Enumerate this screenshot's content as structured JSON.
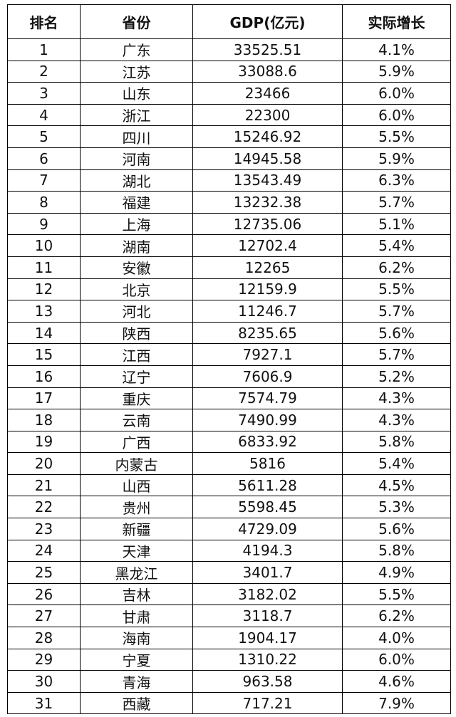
{
  "table": {
    "header": [
      "排名",
      "省份",
      "GDP(亿元)",
      "实际增长"
    ],
    "rows": [
      [
        1,
        "广东",
        33525.51,
        "4.1%"
      ],
      [
        2,
        "江苏",
        33088.6,
        "5.9%"
      ],
      [
        3,
        "山东",
        23466,
        "6.0%"
      ],
      [
        4,
        "浙江",
        22300,
        "6.0%"
      ],
      [
        5,
        "四川",
        15246.92,
        "5.5%"
      ],
      [
        6,
        "河南",
        14945.58,
        "5.9%"
      ],
      [
        7,
        "湖北",
        13543.49,
        "6.3%"
      ],
      [
        8,
        "福建",
        13232.38,
        "5.7%"
      ],
      [
        9,
        "上海",
        12735.06,
        "5.1%"
      ],
      [
        10,
        "湖南",
        12702.4,
        "5.4%"
      ],
      [
        11,
        "安徽",
        12265,
        "6.2%"
      ],
      [
        12,
        "北京",
        12159.9,
        "5.5%"
      ],
      [
        13,
        "河北",
        11246.7,
        "5.7%"
      ],
      [
        14,
        "陕西",
        8235.65,
        "5.6%"
      ],
      [
        15,
        "江西",
        7927.1,
        "5.7%"
      ],
      [
        16,
        "辽宁",
        7606.9,
        "5.2%"
      ],
      [
        17,
        "重庆",
        7574.79,
        "4.3%"
      ],
      [
        18,
        "云南",
        7490.99,
        "4.3%"
      ],
      [
        19,
        "广西",
        6833.92,
        "5.8%"
      ],
      [
        20,
        "内蒙古",
        5816,
        "5.4%"
      ],
      [
        21,
        "山西",
        5611.28,
        "4.5%"
      ],
      [
        22,
        "贵州",
        5598.45,
        "5.3%"
      ],
      [
        23,
        "新疆",
        4729.09,
        "5.6%"
      ],
      [
        24,
        "天津",
        4194.3,
        "5.8%"
      ],
      [
        25,
        "黑龙江",
        3401.7,
        "4.9%"
      ],
      [
        26,
        "吉林",
        3182.02,
        "5.5%"
      ],
      [
        27,
        "甘肃",
        3118.7,
        "6.2%"
      ],
      [
        28,
        "海南",
        1904.17,
        "4.0%"
      ],
      [
        29,
        "宁夏",
        1310.22,
        "6.0%"
      ],
      [
        30,
        "青海",
        963.58,
        "4.6%"
      ],
      [
        31,
        "西藏",
        717.21,
        "7.9%"
      ]
    ]
  }
}
